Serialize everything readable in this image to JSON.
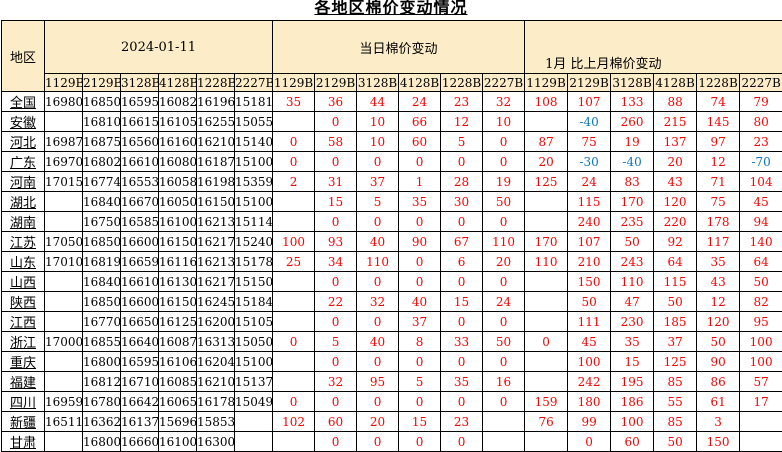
{
  "title": "各地区棉价变动情况",
  "colors": {
    "header_bg": "#fcecc8",
    "positive_change": "#ff0000",
    "negative_change": "#0d74c0",
    "border": "#000000"
  },
  "table": {
    "corner_label": "地区",
    "groups": [
      {
        "label": "2024-01-11",
        "columns": [
          "1129B",
          "2129B",
          "3128B",
          "4128B",
          "1228B",
          "2227B"
        ]
      },
      {
        "label": "当日棉价变动",
        "columns": [
          "1129B",
          "2129B",
          "3128B",
          "4128B",
          "1228B",
          "2227B"
        ]
      },
      {
        "label": "1月 比上月棉价变动",
        "columns": [
          "1129B",
          "2129B",
          "3128B",
          "4128B",
          "1228B",
          "2227B"
        ]
      }
    ],
    "rows": [
      {
        "region": "全国",
        "prices": [
          "16980",
          "16850",
          "16595",
          "16082",
          "16196",
          "15181"
        ],
        "daily": [
          "35",
          "36",
          "44",
          "24",
          "23",
          "32"
        ],
        "monthly": [
          "108",
          "107",
          "133",
          "88",
          "74",
          "79"
        ]
      },
      {
        "region": "安徽",
        "prices": [
          "",
          "16810",
          "16615",
          "16105",
          "16255",
          "15055"
        ],
        "daily": [
          "",
          "0",
          "10",
          "66",
          "12",
          "10"
        ],
        "monthly": [
          "",
          "-40",
          "260",
          "215",
          "145",
          "80"
        ]
      },
      {
        "region": "河北",
        "prices": [
          "16987",
          "16875",
          "16560",
          "16160",
          "16210",
          "15140"
        ],
        "daily": [
          "0",
          "58",
          "10",
          "60",
          "5",
          "0"
        ],
        "monthly": [
          "87",
          "75",
          "19",
          "137",
          "97",
          "23"
        ]
      },
      {
        "region": "广东",
        "prices": [
          "16970",
          "16802",
          "16610",
          "16080",
          "16187",
          "15100"
        ],
        "daily": [
          "0",
          "0",
          "0",
          "0",
          "0",
          "0"
        ],
        "monthly": [
          "20",
          "-30",
          "-40",
          "20",
          "12",
          "-70"
        ]
      },
      {
        "region": "河南",
        "prices": [
          "17015",
          "16774",
          "16553",
          "16058",
          "16198",
          "15359"
        ],
        "daily": [
          "2",
          "31",
          "37",
          "1",
          "28",
          "19"
        ],
        "monthly": [
          "125",
          "24",
          "83",
          "43",
          "71",
          "104"
        ]
      },
      {
        "region": "湖北",
        "prices": [
          "",
          "16840",
          "16670",
          "16050",
          "16150",
          "15100"
        ],
        "daily": [
          "",
          "15",
          "5",
          "35",
          "30",
          "50"
        ],
        "monthly": [
          "",
          "115",
          "170",
          "120",
          "75",
          "45"
        ]
      },
      {
        "region": "湖南",
        "prices": [
          "",
          "16750",
          "16585",
          "16100",
          "16213",
          "15114"
        ],
        "daily": [
          "",
          "0",
          "0",
          "0",
          "0",
          "0"
        ],
        "monthly": [
          "",
          "240",
          "235",
          "220",
          "178",
          "94"
        ]
      },
      {
        "region": "江苏",
        "prices": [
          "17050",
          "16850",
          "16600",
          "16150",
          "16217",
          "15240"
        ],
        "daily": [
          "100",
          "93",
          "40",
          "90",
          "67",
          "110"
        ],
        "monthly": [
          "170",
          "107",
          "50",
          "92",
          "117",
          "140"
        ]
      },
      {
        "region": "山东",
        "prices": [
          "17010",
          "16819",
          "16659",
          "16116",
          "16213",
          "15178"
        ],
        "daily": [
          "25",
          "34",
          "110",
          "0",
          "6",
          "20"
        ],
        "monthly": [
          "110",
          "210",
          "243",
          "64",
          "35",
          "64"
        ]
      },
      {
        "region": "山西",
        "prices": [
          "",
          "16840",
          "16610",
          "16130",
          "16217",
          "15150"
        ],
        "daily": [
          "",
          "0",
          "0",
          "0",
          "0",
          "0"
        ],
        "monthly": [
          "",
          "150",
          "110",
          "115",
          "43",
          "50"
        ]
      },
      {
        "region": "陕西",
        "prices": [
          "",
          "16850",
          "16600",
          "16150",
          "16245",
          "15184"
        ],
        "daily": [
          "",
          "22",
          "32",
          "40",
          "15",
          "24"
        ],
        "monthly": [
          "",
          "50",
          "47",
          "50",
          "12",
          "82"
        ]
      },
      {
        "region": "江西",
        "prices": [
          "",
          "16770",
          "16650",
          "16125",
          "16200",
          "15105"
        ],
        "daily": [
          "",
          "0",
          "0",
          "37",
          "0",
          "0"
        ],
        "monthly": [
          "",
          "111",
          "230",
          "185",
          "120",
          "95"
        ]
      },
      {
        "region": "浙江",
        "prices": [
          "17000",
          "16855",
          "16640",
          "16087",
          "16313",
          "15050"
        ],
        "daily": [
          "0",
          "5",
          "40",
          "8",
          "33",
          "50"
        ],
        "monthly": [
          "0",
          "45",
          "35",
          "37",
          "50",
          "100"
        ]
      },
      {
        "region": "重庆",
        "prices": [
          "",
          "16800",
          "16595",
          "16106",
          "16204",
          "15100"
        ],
        "daily": [
          "",
          "0",
          "0",
          "0",
          "0",
          "0"
        ],
        "monthly": [
          "",
          "100",
          "15",
          "125",
          "90",
          "100"
        ]
      },
      {
        "region": "福建",
        "prices": [
          "",
          "16812",
          "16710",
          "16085",
          "16210",
          "15137"
        ],
        "daily": [
          "",
          "32",
          "95",
          "5",
          "35",
          "16"
        ],
        "monthly": [
          "",
          "242",
          "195",
          "85",
          "86",
          "57"
        ]
      },
      {
        "region": "四川",
        "prices": [
          "16959",
          "16780",
          "16642",
          "16065",
          "16178",
          "15049"
        ],
        "daily": [
          "0",
          "0",
          "0",
          "0",
          "0",
          "0"
        ],
        "monthly": [
          "159",
          "180",
          "186",
          "55",
          "61",
          "17"
        ]
      },
      {
        "region": "新疆",
        "prices": [
          "16511",
          "16362",
          "16137",
          "15696",
          "15853",
          ""
        ],
        "daily": [
          "102",
          "60",
          "20",
          "15",
          "23",
          ""
        ],
        "monthly": [
          "76",
          "99",
          "100",
          "85",
          "3",
          ""
        ]
      },
      {
        "region": "甘肃",
        "prices": [
          "",
          "16800",
          "16660",
          "16100",
          "16300",
          ""
        ],
        "daily": [
          "",
          "0",
          "0",
          "0",
          "0",
          ""
        ],
        "monthly": [
          "",
          "0",
          "60",
          "50",
          "150",
          ""
        ]
      }
    ]
  }
}
